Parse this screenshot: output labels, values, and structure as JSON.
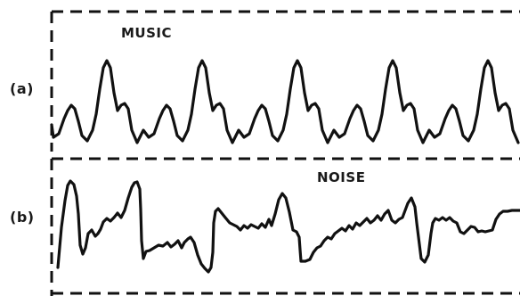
{
  "figure": {
    "panels": [
      {
        "tag": "(a)",
        "title": "MUSIC"
      },
      {
        "tag": "(b)",
        "title": "NOISE"
      }
    ],
    "colors": {
      "stroke": "#111111",
      "background": "#ffffff"
    }
  }
}
